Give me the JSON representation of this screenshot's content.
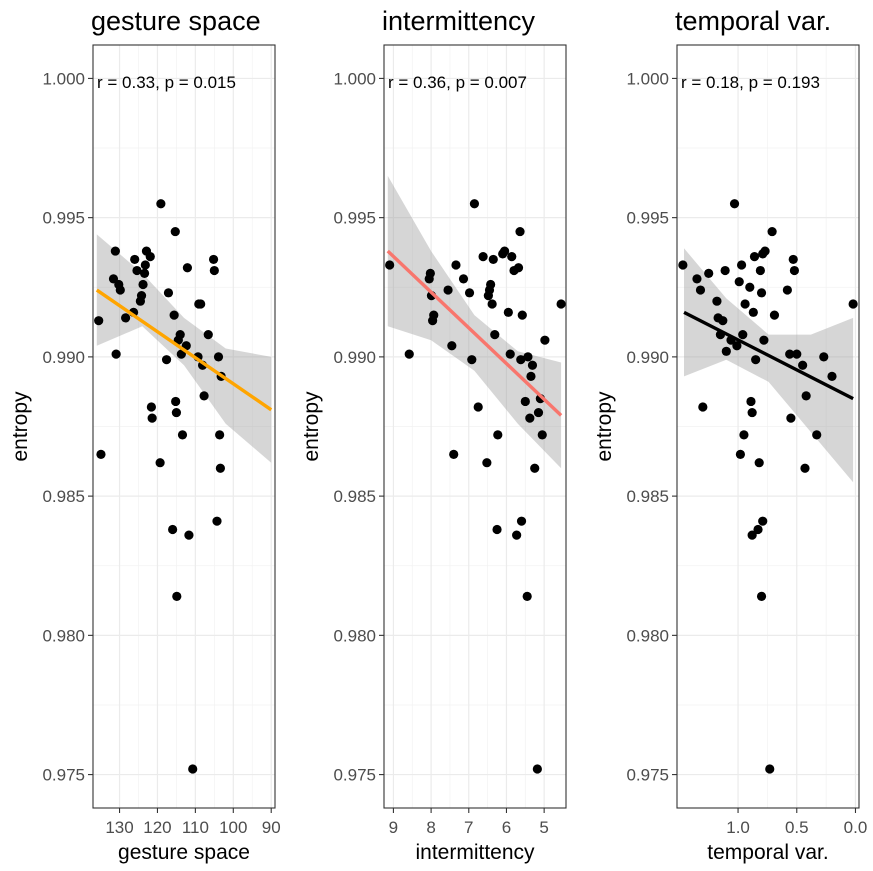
{
  "chart_data": [
    {
      "type": "scatter",
      "title": "gesture space",
      "xlabel": "gesture space",
      "ylabel": "entropy",
      "annotation": "r = 0.33, p = 0.015",
      "x_reversed": true,
      "xlim": [
        137,
        89
      ],
      "ylim": [
        0.9738,
        1.0012
      ],
      "x_ticks": [
        130,
        120,
        110,
        100,
        90
      ],
      "x_tick_labels": [
        "130",
        "120",
        "110",
        "100",
        "90"
      ],
      "y_ticks": [
        0.975,
        0.98,
        0.985,
        0.99,
        0.995,
        1.0
      ],
      "y_tick_labels": [
        "0.975",
        "0.980",
        "0.985",
        "0.990",
        "0.995",
        "1.000"
      ],
      "fit_color": "#FFA500",
      "fit_line": {
        "x": [
          136,
          90
        ],
        "y": [
          0.9924,
          0.9881
        ]
      },
      "confidence_band": {
        "x": [
          136,
          124,
          113,
          102,
          90
        ],
        "upper": [
          0.9944,
          0.993,
          0.9914,
          0.9903,
          0.99
        ],
        "lower": [
          0.9904,
          0.9911,
          0.9897,
          0.9876,
          0.9862
        ]
      },
      "points": [
        {
          "x": 135.5,
          "y": 0.9913
        },
        {
          "x": 134.9,
          "y": 0.9865
        },
        {
          "x": 131.6,
          "y": 0.9928
        },
        {
          "x": 131.1,
          "y": 0.9938
        },
        {
          "x": 130.9,
          "y": 0.9901
        },
        {
          "x": 130.2,
          "y": 0.9926
        },
        {
          "x": 129.8,
          "y": 0.9924
        },
        {
          "x": 128.4,
          "y": 0.9914
        },
        {
          "x": 126.3,
          "y": 0.9916
        },
        {
          "x": 126.0,
          "y": 0.9935
        },
        {
          "x": 125.4,
          "y": 0.9931
        },
        {
          "x": 124.5,
          "y": 0.992
        },
        {
          "x": 124.2,
          "y": 0.9922
        },
        {
          "x": 123.8,
          "y": 0.9926
        },
        {
          "x": 123.4,
          "y": 0.993
        },
        {
          "x": 123.2,
          "y": 0.9933
        },
        {
          "x": 122.9,
          "y": 0.9938
        },
        {
          "x": 121.9,
          "y": 0.9936
        },
        {
          "x": 121.6,
          "y": 0.9882
        },
        {
          "x": 121.4,
          "y": 0.9878
        },
        {
          "x": 119.3,
          "y": 0.9862
        },
        {
          "x": 119.1,
          "y": 0.9955
        },
        {
          "x": 117.6,
          "y": 0.9899
        },
        {
          "x": 117.1,
          "y": 0.9923
        },
        {
          "x": 116.0,
          "y": 0.9838
        },
        {
          "x": 115.6,
          "y": 0.9915
        },
        {
          "x": 115.3,
          "y": 0.9945
        },
        {
          "x": 115.2,
          "y": 0.9884
        },
        {
          "x": 115.0,
          "y": 0.988
        },
        {
          "x": 114.9,
          "y": 0.9814
        },
        {
          "x": 114.5,
          "y": 0.9906
        },
        {
          "x": 114.0,
          "y": 0.9908
        },
        {
          "x": 113.7,
          "y": 0.9901
        },
        {
          "x": 113.4,
          "y": 0.9872
        },
        {
          "x": 112.4,
          "y": 0.9904
        },
        {
          "x": 112.1,
          "y": 0.9932
        },
        {
          "x": 111.7,
          "y": 0.9836
        },
        {
          "x": 110.7,
          "y": 0.9752
        },
        {
          "x": 109.3,
          "y": 0.99
        },
        {
          "x": 109.1,
          "y": 0.9919
        },
        {
          "x": 108.6,
          "y": 0.9919
        },
        {
          "x": 108.1,
          "y": 0.9897
        },
        {
          "x": 107.7,
          "y": 0.9886
        },
        {
          "x": 106.6,
          "y": 0.9908
        },
        {
          "x": 105.2,
          "y": 0.9935
        },
        {
          "x": 105.0,
          "y": 0.9931
        },
        {
          "x": 104.3,
          "y": 0.9841
        },
        {
          "x": 103.9,
          "y": 0.99
        },
        {
          "x": 103.6,
          "y": 0.9872
        },
        {
          "x": 103.4,
          "y": 0.986
        },
        {
          "x": 103.2,
          "y": 0.9893
        }
      ]
    },
    {
      "type": "scatter",
      "title": "intermittency",
      "xlabel": "intermittency",
      "ylabel": "entropy",
      "annotation": "r = 0.36, p = 0.007",
      "x_reversed": true,
      "xlim": [
        9.25,
        4.42
      ],
      "ylim": [
        0.9738,
        1.0012
      ],
      "x_ticks": [
        9,
        8,
        7,
        6,
        5
      ],
      "x_tick_labels": [
        "9",
        "8",
        "7",
        "6",
        "5"
      ],
      "y_ticks": [
        0.975,
        0.98,
        0.985,
        0.99,
        0.995,
        1.0
      ],
      "y_tick_labels": [
        "0.975",
        "0.980",
        "0.985",
        "0.990",
        "0.995",
        "1.000"
      ],
      "fit_color": "#F8766D",
      "fit_line": {
        "x": [
          9.15,
          4.55
        ],
        "y": [
          0.9938,
          0.9879
        ]
      },
      "confidence_band": {
        "x": [
          9.15,
          8.0,
          6.85,
          5.7,
          4.55
        ],
        "upper": [
          0.9965,
          0.9938,
          0.9915,
          0.9902,
          0.9898
        ],
        "lower": [
          0.9911,
          0.9906,
          0.9895,
          0.9876,
          0.986
        ]
      },
      "points": [
        {
          "x": 9.1,
          "y": 0.9933
        },
        {
          "x": 8.58,
          "y": 0.9901
        },
        {
          "x": 8.05,
          "y": 0.9928
        },
        {
          "x": 8.02,
          "y": 0.993
        },
        {
          "x": 7.99,
          "y": 0.9922
        },
        {
          "x": 7.96,
          "y": 0.9913
        },
        {
          "x": 7.93,
          "y": 0.9915
        },
        {
          "x": 7.55,
          "y": 0.9924
        },
        {
          "x": 7.45,
          "y": 0.9904
        },
        {
          "x": 7.4,
          "y": 0.9865
        },
        {
          "x": 7.34,
          "y": 0.9933
        },
        {
          "x": 7.14,
          "y": 0.9928
        },
        {
          "x": 6.98,
          "y": 0.9923
        },
        {
          "x": 6.92,
          "y": 0.9899
        },
        {
          "x": 6.85,
          "y": 0.9955
        },
        {
          "x": 6.75,
          "y": 0.9882
        },
        {
          "x": 6.62,
          "y": 0.9936
        },
        {
          "x": 6.52,
          "y": 0.9862
        },
        {
          "x": 6.48,
          "y": 0.9922
        },
        {
          "x": 6.45,
          "y": 0.9924
        },
        {
          "x": 6.42,
          "y": 0.9926
        },
        {
          "x": 6.38,
          "y": 0.9919
        },
        {
          "x": 6.35,
          "y": 0.9935
        },
        {
          "x": 6.31,
          "y": 0.9908
        },
        {
          "x": 6.25,
          "y": 0.9838
        },
        {
          "x": 6.23,
          "y": 0.9872
        },
        {
          "x": 6.1,
          "y": 0.9937
        },
        {
          "x": 6.05,
          "y": 0.9938
        },
        {
          "x": 5.95,
          "y": 0.9916
        },
        {
          "x": 5.9,
          "y": 0.9901
        },
        {
          "x": 5.86,
          "y": 0.9936
        },
        {
          "x": 5.8,
          "y": 0.9931
        },
        {
          "x": 5.73,
          "y": 0.9836
        },
        {
          "x": 5.68,
          "y": 0.9932
        },
        {
          "x": 5.64,
          "y": 0.9945
        },
        {
          "x": 5.62,
          "y": 0.9899
        },
        {
          "x": 5.6,
          "y": 0.9841
        },
        {
          "x": 5.58,
          "y": 0.9915
        },
        {
          "x": 5.5,
          "y": 0.9884
        },
        {
          "x": 5.45,
          "y": 0.9814
        },
        {
          "x": 5.43,
          "y": 0.99
        },
        {
          "x": 5.38,
          "y": 0.9878
        },
        {
          "x": 5.35,
          "y": 0.9893
        },
        {
          "x": 5.31,
          "y": 0.9897
        },
        {
          "x": 5.25,
          "y": 0.986
        },
        {
          "x": 5.18,
          "y": 0.9752
        },
        {
          "x": 5.15,
          "y": 0.988
        },
        {
          "x": 5.1,
          "y": 0.9885
        },
        {
          "x": 5.05,
          "y": 0.9872
        },
        {
          "x": 4.98,
          "y": 0.9906
        },
        {
          "x": 4.55,
          "y": 0.9919
        }
      ]
    },
    {
      "type": "scatter",
      "title": "temporal var.",
      "xlabel": "temporal var.",
      "ylabel": "entropy",
      "annotation": "r = 0.18, p = 0.193",
      "x_reversed": true,
      "xlim": [
        1.52,
        -0.03
      ],
      "ylim": [
        0.9738,
        1.0012
      ],
      "x_ticks": [
        1.0,
        0.5,
        0.0
      ],
      "x_tick_labels": [
        "1.0",
        "0.5",
        "0.0"
      ],
      "y_ticks": [
        0.975,
        0.98,
        0.985,
        0.99,
        0.995,
        1.0
      ],
      "y_tick_labels": [
        "0.975",
        "0.980",
        "0.985",
        "0.990",
        "0.995",
        "1.000"
      ],
      "fit_color": "#000000",
      "fit_line": {
        "x": [
          1.46,
          0.02
        ],
        "y": [
          0.9916,
          0.9885
        ]
      },
      "confidence_band": {
        "x": [
          1.46,
          1.1,
          0.74,
          0.38,
          0.02
        ],
        "upper": [
          0.9939,
          0.9921,
          0.9908,
          0.9908,
          0.9914
        ],
        "lower": [
          0.9893,
          0.9899,
          0.9891,
          0.9873,
          0.9855
        ]
      },
      "points": [
        {
          "x": 1.47,
          "y": 0.9933
        },
        {
          "x": 1.35,
          "y": 0.9928
        },
        {
          "x": 1.32,
          "y": 0.9924
        },
        {
          "x": 1.3,
          "y": 0.9882
        },
        {
          "x": 1.25,
          "y": 0.993
        },
        {
          "x": 1.18,
          "y": 0.992
        },
        {
          "x": 1.17,
          "y": 0.9914
        },
        {
          "x": 1.15,
          "y": 0.9908
        },
        {
          "x": 1.13,
          "y": 0.9913
        },
        {
          "x": 1.11,
          "y": 0.9931
        },
        {
          "x": 1.1,
          "y": 0.9902
        },
        {
          "x": 1.06,
          "y": 0.9906
        },
        {
          "x": 1.03,
          "y": 0.9955
        },
        {
          "x": 1.01,
          "y": 0.9904
        },
        {
          "x": 0.99,
          "y": 0.9927
        },
        {
          "x": 0.98,
          "y": 0.9865
        },
        {
          "x": 0.97,
          "y": 0.9933
        },
        {
          "x": 0.96,
          "y": 0.9908
        },
        {
          "x": 0.95,
          "y": 0.9872
        },
        {
          "x": 0.94,
          "y": 0.9919
        },
        {
          "x": 0.9,
          "y": 0.9925
        },
        {
          "x": 0.89,
          "y": 0.9884
        },
        {
          "x": 0.88,
          "y": 0.988
        },
        {
          "x": 0.88,
          "y": 0.9836
        },
        {
          "x": 0.87,
          "y": 0.9916
        },
        {
          "x": 0.86,
          "y": 0.9936
        },
        {
          "x": 0.85,
          "y": 0.9899
        },
        {
          "x": 0.83,
          "y": 0.9838
        },
        {
          "x": 0.82,
          "y": 0.9862
        },
        {
          "x": 0.81,
          "y": 0.9931
        },
        {
          "x": 0.8,
          "y": 0.9814
        },
        {
          "x": 0.8,
          "y": 0.9923
        },
        {
          "x": 0.79,
          "y": 0.9937
        },
        {
          "x": 0.79,
          "y": 0.9841
        },
        {
          "x": 0.78,
          "y": 0.9906
        },
        {
          "x": 0.77,
          "y": 0.9938
        },
        {
          "x": 0.73,
          "y": 0.9752
        },
        {
          "x": 0.71,
          "y": 0.9945
        },
        {
          "x": 0.69,
          "y": 0.9915
        },
        {
          "x": 0.58,
          "y": 0.9924
        },
        {
          "x": 0.56,
          "y": 0.9901
        },
        {
          "x": 0.55,
          "y": 0.9878
        },
        {
          "x": 0.53,
          "y": 0.9935
        },
        {
          "x": 0.52,
          "y": 0.9931
        },
        {
          "x": 0.5,
          "y": 0.9901
        },
        {
          "x": 0.45,
          "y": 0.9897
        },
        {
          "x": 0.43,
          "y": 0.986
        },
        {
          "x": 0.42,
          "y": 0.9886
        },
        {
          "x": 0.33,
          "y": 0.9872
        },
        {
          "x": 0.27,
          "y": 0.99
        },
        {
          "x": 0.2,
          "y": 0.9893
        },
        {
          "x": 0.02,
          "y": 0.9919
        }
      ]
    }
  ]
}
